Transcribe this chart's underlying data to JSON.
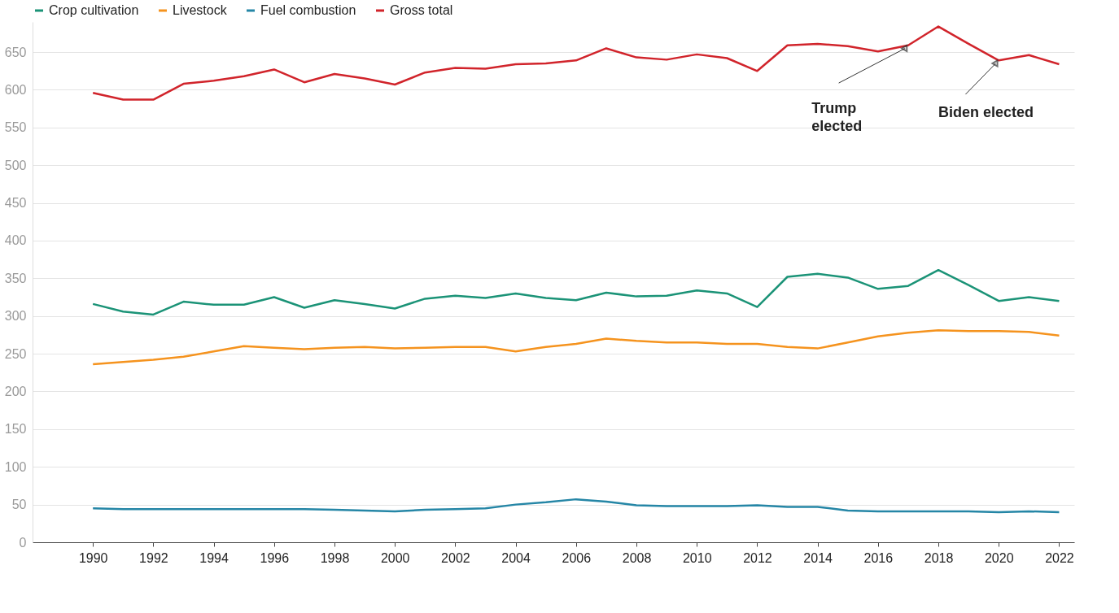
{
  "chart_data": {
    "type": "line",
    "x": [
      1990,
      1991,
      1992,
      1993,
      1994,
      1995,
      1996,
      1997,
      1998,
      1999,
      2000,
      2001,
      2002,
      2003,
      2004,
      2005,
      2006,
      2007,
      2008,
      2009,
      2010,
      2011,
      2012,
      2013,
      2014,
      2015,
      2016,
      2017,
      2018,
      2019,
      2020,
      2021,
      2022
    ],
    "series": [
      {
        "name": "Crop cultivation",
        "color": "#1b9377",
        "values": [
          316,
          306,
          302,
          319,
          315,
          315,
          325,
          311,
          321,
          316,
          310,
          323,
          327,
          324,
          330,
          324,
          321,
          331,
          326,
          327,
          334,
          330,
          312,
          352,
          356,
          351,
          336,
          340,
          361,
          341,
          320,
          325,
          320
        ]
      },
      {
        "name": "Livestock",
        "color": "#f5931e",
        "values": [
          236,
          239,
          242,
          246,
          253,
          260,
          258,
          256,
          258,
          259,
          257,
          258,
          259,
          259,
          253,
          259,
          263,
          270,
          267,
          265,
          265,
          263,
          263,
          259,
          257,
          265,
          273,
          278,
          281,
          280,
          280,
          279,
          274
        ]
      },
      {
        "name": "Fuel combustion",
        "color": "#2586a6",
        "values": [
          45,
          44,
          44,
          44,
          44,
          44,
          44,
          44,
          43,
          42,
          41,
          43,
          44,
          45,
          50,
          53,
          57,
          54,
          49,
          48,
          48,
          48,
          49,
          47,
          47,
          42,
          41,
          41,
          41,
          41,
          40,
          41,
          40
        ]
      },
      {
        "name": "Gross total",
        "color": "#d1242b",
        "values": [
          596,
          587,
          587,
          608,
          612,
          618,
          627,
          610,
          621,
          615,
          607,
          623,
          629,
          628,
          634,
          635,
          639,
          655,
          643,
          640,
          647,
          642,
          625,
          659,
          661,
          658,
          651,
          659,
          684,
          661,
          639,
          646,
          634
        ]
      }
    ],
    "xlim": [
      1988,
      2022.5
    ],
    "xticks": [
      1990,
      1992,
      1994,
      1996,
      1998,
      2000,
      2002,
      2004,
      2006,
      2008,
      2010,
      2012,
      2014,
      2016,
      2018,
      2020,
      2022
    ],
    "ylim": [
      0,
      690
    ],
    "yticks": [
      0,
      50,
      100,
      150,
      200,
      250,
      300,
      350,
      400,
      450,
      500,
      550,
      600,
      650
    ],
    "grid": "y",
    "legend": "top left",
    "line_style": "solid",
    "marker": "none",
    "annotations": [
      {
        "text": "Trump\nelected",
        "x": 2017,
        "y": 659
      },
      {
        "text": "Biden elected",
        "x": 2020,
        "y": 639
      }
    ]
  }
}
